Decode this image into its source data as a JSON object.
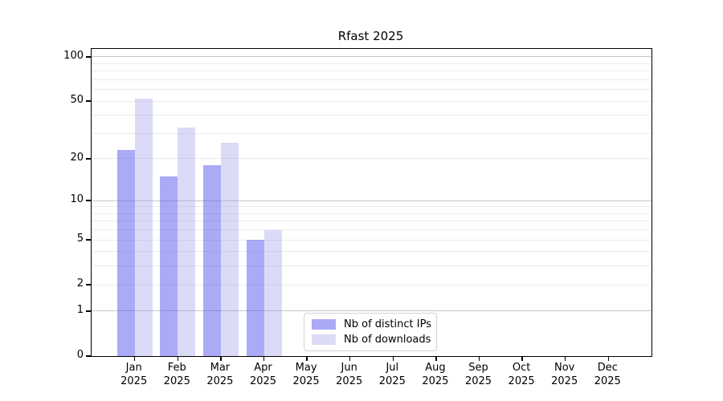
{
  "chart_data": {
    "type": "bar",
    "title": "Rfast 2025",
    "months": [
      {
        "month": "Jan",
        "year": "2025"
      },
      {
        "month": "Feb",
        "year": "2025"
      },
      {
        "month": "Mar",
        "year": "2025"
      },
      {
        "month": "Apr",
        "year": "2025"
      },
      {
        "month": "May",
        "year": "2025"
      },
      {
        "month": "Jun",
        "year": "2025"
      },
      {
        "month": "Jul",
        "year": "2025"
      },
      {
        "month": "Aug",
        "year": "2025"
      },
      {
        "month": "Sep",
        "year": "2025"
      },
      {
        "month": "Oct",
        "year": "2025"
      },
      {
        "month": "Nov",
        "year": "2025"
      },
      {
        "month": "Dec",
        "year": "2025"
      }
    ],
    "series": [
      {
        "name": "Nb of distinct IPs",
        "slug": "distinct-ips",
        "color": "#aaaaf7",
        "bar_fill": "rgba(85,85,238,0.5)",
        "values": [
          23,
          15,
          18,
          5,
          0,
          0,
          0,
          0,
          0,
          0,
          0,
          0
        ]
      },
      {
        "name": "Nb of downloads",
        "slug": "downloads",
        "color": "#dcdcf7",
        "bar_fill": "rgba(152,152,232,0.35)",
        "values": [
          52,
          33,
          26,
          6,
          0,
          0,
          0,
          0,
          0,
          0,
          0,
          0
        ]
      }
    ],
    "yscale": "log1p",
    "ylim": [
      0,
      113.3
    ],
    "yticks": [
      {
        "value": 0,
        "label": "0"
      },
      {
        "value": 1,
        "label": "1"
      },
      {
        "value": 2,
        "label": "2"
      },
      {
        "value": 5,
        "label": "5"
      },
      {
        "value": 10,
        "label": "10"
      },
      {
        "value": 20,
        "label": "20"
      },
      {
        "value": 50,
        "label": "50"
      },
      {
        "value": 100,
        "label": "100"
      }
    ],
    "grid": {
      "minor_values": [
        2,
        3,
        4,
        5,
        6,
        7,
        8,
        9,
        20,
        30,
        40,
        50,
        60,
        70,
        80,
        90
      ],
      "major_values": [
        1,
        10,
        100
      ],
      "minor_color": "#ebebeb",
      "major_color": "#c6c6c6"
    },
    "legend_position": "lower center"
  }
}
